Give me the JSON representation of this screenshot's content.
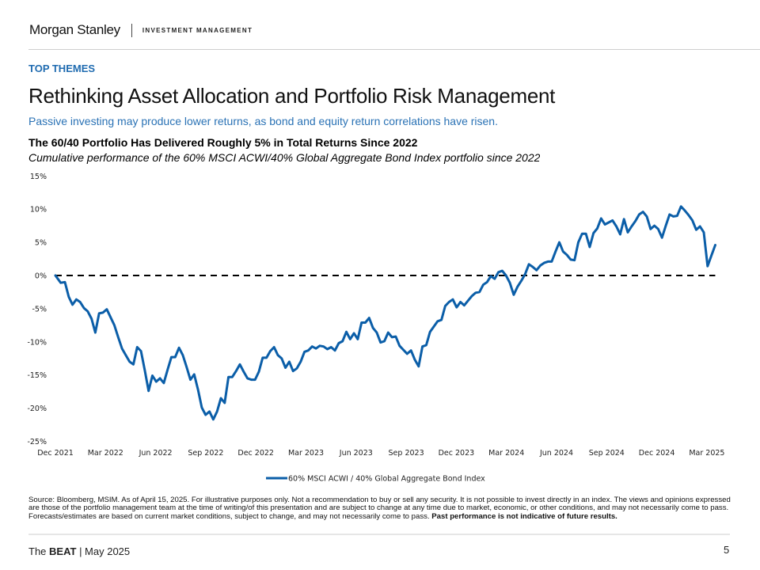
{
  "header": {
    "brand_name": "Morgan Stanley",
    "brand_sub": "INVESTMENT MANAGEMENT"
  },
  "eyebrow": "TOP THEMES",
  "title": "Rethinking Asset Allocation and Portfolio Risk Management",
  "subtitle": "Passive investing may produce lower returns, as bond and equity return correlations have risen.",
  "colors": {
    "series": "#0b5ea8",
    "accent": "#1f6bb0",
    "baseline": "#000000"
  },
  "chart_data": {
    "type": "line",
    "title": "The 60/40 Portfolio Has Delivered Roughly 5% in Total Returns Since 2022",
    "subtitle": "Cumulative performance of the 60% MSCI ACWI/40% Global Aggregate Bond Index portfolio since 2022",
    "xlabel": "",
    "ylabel": "",
    "x_unit": "months since Dec 2021",
    "xlim": [
      0,
      39.5
    ],
    "ylim": [
      -25,
      15
    ],
    "y_ticks": [
      15,
      10,
      5,
      0,
      -5,
      -10,
      -15,
      -20,
      -25
    ],
    "y_tick_labels": [
      "15%",
      "10%",
      "5%",
      "0%",
      "-5%",
      "-10%",
      "-15%",
      "-20%",
      "-25%"
    ],
    "x_ticks": [
      0,
      3,
      6,
      9,
      12,
      15,
      18,
      21,
      24,
      27,
      30,
      33,
      36,
      39
    ],
    "x_tick_labels": [
      "Dec 2021",
      "Mar 2022",
      "Jun 2022",
      "Sep 2022",
      "Dec 2022",
      "Mar 2023",
      "Jun 2023",
      "Sep 2023",
      "Dec 2023",
      "Mar 2024",
      "Jun 2024",
      "Sep 2024",
      "Dec 2024",
      "Mar 2025"
    ],
    "grid": false,
    "legend_position": "bottom",
    "reference_line": {
      "y": 0,
      "style": "dashed"
    },
    "series": [
      {
        "name": "60% MSCI ACWI / 40% Global Aggregate Bond Index",
        "points": [
          [
            0.0,
            0.0
          ],
          [
            0.28,
            -1.1
          ],
          [
            0.5,
            -1.0
          ],
          [
            0.7,
            -3.2
          ],
          [
            0.9,
            -4.4
          ],
          [
            1.1,
            -3.6
          ],
          [
            1.3,
            -4.0
          ],
          [
            1.5,
            -4.9
          ],
          [
            1.7,
            -5.4
          ],
          [
            1.9,
            -6.5
          ],
          [
            2.1,
            -8.6
          ],
          [
            2.3,
            -5.7
          ],
          [
            2.5,
            -5.6
          ],
          [
            2.7,
            -5.1
          ],
          [
            2.9,
            -6.3
          ],
          [
            3.1,
            -7.5
          ],
          [
            3.3,
            -9.3
          ],
          [
            3.5,
            -11.0
          ],
          [
            3.7,
            -12.0
          ],
          [
            3.9,
            -13.0
          ],
          [
            4.1,
            -13.4
          ],
          [
            4.3,
            -10.8
          ],
          [
            4.5,
            -11.4
          ],
          [
            4.7,
            -14.3
          ],
          [
            4.9,
            -17.4
          ],
          [
            5.1,
            -15.1
          ],
          [
            5.3,
            -16.0
          ],
          [
            5.5,
            -15.5
          ],
          [
            5.7,
            -16.2
          ],
          [
            5.9,
            -14.2
          ],
          [
            6.1,
            -12.3
          ],
          [
            6.3,
            -12.3
          ],
          [
            6.5,
            -10.9
          ],
          [
            6.7,
            -12.0
          ],
          [
            6.9,
            -13.8
          ],
          [
            7.1,
            -15.7
          ],
          [
            7.3,
            -14.9
          ],
          [
            7.5,
            -17.2
          ],
          [
            7.7,
            -19.9
          ],
          [
            7.9,
            -21.0
          ],
          [
            8.1,
            -20.5
          ],
          [
            8.3,
            -21.7
          ],
          [
            8.5,
            -20.5
          ],
          [
            8.7,
            -18.5
          ],
          [
            8.9,
            -19.2
          ],
          [
            9.1,
            -15.3
          ],
          [
            9.3,
            -15.3
          ],
          [
            9.5,
            -14.4
          ],
          [
            9.7,
            -13.4
          ],
          [
            9.9,
            -14.5
          ],
          [
            10.1,
            -15.5
          ],
          [
            10.3,
            -15.7
          ],
          [
            10.5,
            -15.7
          ],
          [
            10.7,
            -14.5
          ],
          [
            10.9,
            -12.4
          ],
          [
            11.1,
            -12.4
          ],
          [
            11.3,
            -11.4
          ],
          [
            11.5,
            -10.8
          ],
          [
            11.7,
            -12.0
          ],
          [
            11.9,
            -12.5
          ],
          [
            12.1,
            -13.9
          ],
          [
            12.3,
            -13.0
          ],
          [
            12.5,
            -14.4
          ],
          [
            12.7,
            -14.0
          ],
          [
            12.9,
            -13.0
          ],
          [
            13.1,
            -11.5
          ],
          [
            13.3,
            -11.3
          ],
          [
            13.5,
            -10.7
          ],
          [
            13.7,
            -11.0
          ],
          [
            13.9,
            -10.6
          ],
          [
            14.1,
            -10.7
          ],
          [
            14.3,
            -11.1
          ],
          [
            14.5,
            -10.8
          ],
          [
            14.7,
            -11.3
          ],
          [
            14.9,
            -10.2
          ],
          [
            15.1,
            -9.9
          ],
          [
            15.3,
            -8.5
          ],
          [
            15.5,
            -9.6
          ],
          [
            15.7,
            -8.7
          ],
          [
            15.9,
            -9.6
          ],
          [
            16.1,
            -7.1
          ],
          [
            16.3,
            -7.1
          ],
          [
            16.5,
            -6.4
          ],
          [
            16.7,
            -7.9
          ],
          [
            16.9,
            -8.6
          ],
          [
            17.1,
            -10.1
          ],
          [
            17.3,
            -9.9
          ],
          [
            17.5,
            -8.6
          ],
          [
            17.7,
            -9.3
          ],
          [
            17.9,
            -9.2
          ],
          [
            18.1,
            -10.6
          ],
          [
            18.3,
            -11.2
          ],
          [
            18.5,
            -11.8
          ],
          [
            18.7,
            -11.3
          ],
          [
            18.9,
            -12.7
          ],
          [
            19.1,
            -13.7
          ],
          [
            19.3,
            -10.7
          ],
          [
            19.5,
            -10.5
          ],
          [
            19.7,
            -8.5
          ],
          [
            19.9,
            -7.7
          ],
          [
            20.1,
            -6.9
          ],
          [
            20.3,
            -6.7
          ],
          [
            20.5,
            -4.6
          ],
          [
            20.7,
            -4.0
          ],
          [
            20.9,
            -3.6
          ],
          [
            21.1,
            -4.8
          ],
          [
            21.3,
            -4.0
          ],
          [
            21.5,
            -4.5
          ],
          [
            21.7,
            -3.8
          ],
          [
            21.9,
            -3.1
          ],
          [
            22.1,
            -2.6
          ],
          [
            22.3,
            -2.5
          ],
          [
            22.5,
            -1.4
          ],
          [
            22.7,
            -1.0
          ],
          [
            22.9,
            -0.1
          ],
          [
            23.1,
            -0.5
          ],
          [
            23.3,
            0.5
          ],
          [
            23.5,
            0.7
          ],
          [
            23.7,
            0.0
          ],
          [
            23.9,
            -1.1
          ],
          [
            24.1,
            -2.9
          ],
          [
            24.3,
            -1.7
          ],
          [
            24.5,
            -0.8
          ],
          [
            24.7,
            0.2
          ],
          [
            24.9,
            1.7
          ],
          [
            25.1,
            1.3
          ],
          [
            25.3,
            0.8
          ],
          [
            25.5,
            1.5
          ],
          [
            25.7,
            1.9
          ],
          [
            25.9,
            2.1
          ],
          [
            26.1,
            2.1
          ],
          [
            26.3,
            3.6
          ],
          [
            26.5,
            5.0
          ],
          [
            26.7,
            3.6
          ],
          [
            26.9,
            3.1
          ],
          [
            27.1,
            2.4
          ],
          [
            27.3,
            2.3
          ],
          [
            27.5,
            5.0
          ],
          [
            27.7,
            6.3
          ],
          [
            27.9,
            6.3
          ],
          [
            28.1,
            4.3
          ],
          [
            28.3,
            6.4
          ],
          [
            28.5,
            7.1
          ],
          [
            28.7,
            8.6
          ],
          [
            28.9,
            7.7
          ],
          [
            29.1,
            8.0
          ],
          [
            29.3,
            8.3
          ],
          [
            29.5,
            7.4
          ],
          [
            29.7,
            6.2
          ],
          [
            29.9,
            8.5
          ],
          [
            30.1,
            6.5
          ],
          [
            30.3,
            7.4
          ],
          [
            30.5,
            8.2
          ],
          [
            30.7,
            9.2
          ],
          [
            30.9,
            9.6
          ],
          [
            31.1,
            8.9
          ],
          [
            31.3,
            7.0
          ],
          [
            31.5,
            7.5
          ],
          [
            31.7,
            7.0
          ],
          [
            31.9,
            5.7
          ],
          [
            32.1,
            7.5
          ],
          [
            32.3,
            9.2
          ],
          [
            32.5,
            8.9
          ],
          [
            32.7,
            9.0
          ],
          [
            32.9,
            10.4
          ],
          [
            33.1,
            9.8
          ],
          [
            33.3,
            9.1
          ],
          [
            33.5,
            8.3
          ],
          [
            33.7,
            6.9
          ],
          [
            33.9,
            7.4
          ],
          [
            34.1,
            6.5
          ],
          [
            34.3,
            1.4
          ],
          [
            34.5,
            3.0
          ],
          [
            34.7,
            4.6
          ]
        ]
      }
    ]
  },
  "source": {
    "text": "Source: Bloomberg, MSIM. As of April 15, 2025. For illustrative purposes only. Not a recommendation to buy or sell any security. It is not possible to invest directly in an index. The views and opinions expressed are those of the portfolio management team at the time of writing/of this presentation and are subject to change at any time due to market, economic, or other conditions, and may not necessarily come to pass.  Forecasts/estimates are based on current market conditions, subject to change, and may not necessarily come to pass. ",
    "bold": "Past performance is not indicative of future results."
  },
  "footer": {
    "prefix": "The ",
    "publication": "BEAT",
    "suffix": " | May 2025",
    "page_number": "5"
  }
}
